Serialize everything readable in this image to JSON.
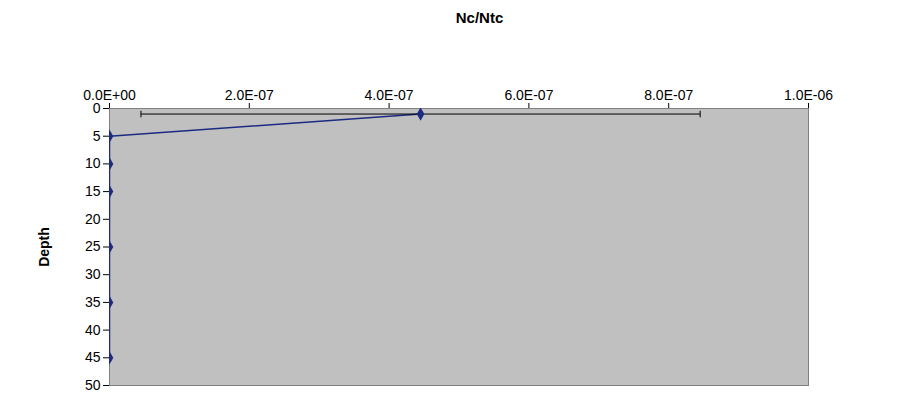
{
  "chart_data": {
    "type": "line",
    "title": "Nc/Ntc",
    "y_label": "Depth",
    "x": [
      4.45e-07,
      0,
      0,
      0,
      0,
      0,
      0
    ],
    "y": [
      1,
      5,
      10,
      15,
      25,
      35,
      45
    ],
    "errors": [
      4e-07,
      null,
      null,
      null,
      null,
      null,
      null
    ],
    "color": "#1c2a80",
    "marker": "diamond",
    "xlim": [
      0,
      1e-06
    ],
    "xticks": [
      {
        "value": 0,
        "label": "0.0E+00"
      },
      {
        "value": 2e-07,
        "label": "2.0E-07"
      },
      {
        "value": 4e-07,
        "label": "4.0E-07"
      },
      {
        "value": 6e-07,
        "label": "6.0E-07"
      },
      {
        "value": 8e-07,
        "label": "8.0E-07"
      },
      {
        "value": 1e-06,
        "label": "1.0E-06"
      }
    ],
    "ylim": [
      0,
      50
    ],
    "yticks": [
      0,
      5,
      10,
      15,
      20,
      25,
      30,
      35,
      40,
      45,
      50
    ],
    "grid": false
  }
}
